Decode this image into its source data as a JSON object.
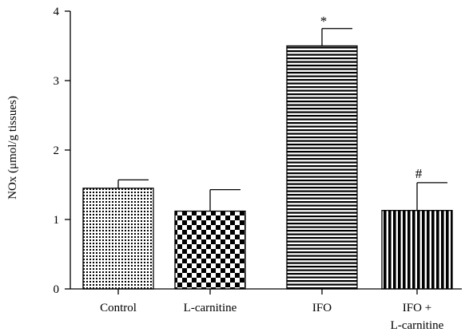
{
  "chart_data": {
    "type": "bar",
    "title": "",
    "xlabel": "",
    "ylabel": "NOx (μmol/g tissues)",
    "ylim": [
      0,
      4
    ],
    "yticks": [
      "0",
      "1",
      "2",
      "3",
      "4"
    ],
    "grid": false,
    "legend": "none",
    "categories": [
      {
        "lines": [
          "Control"
        ],
        "value": 1.45,
        "error": 0.12,
        "annotation": "",
        "pattern": "dots"
      },
      {
        "lines": [
          "L-carnitine"
        ],
        "value": 1.12,
        "error": 0.31,
        "annotation": "",
        "pattern": "checker"
      },
      {
        "lines": [
          "IFO"
        ],
        "value": 3.5,
        "error": 0.25,
        "annotation": "*",
        "pattern": "hstripes"
      },
      {
        "lines": [
          "IFO +",
          "L-carnitine"
        ],
        "value": 1.13,
        "error": 0.4,
        "annotation": "#",
        "pattern": "vstripes"
      }
    ],
    "colors": {
      "ink": "#000000",
      "background": "#ffffff"
    }
  }
}
